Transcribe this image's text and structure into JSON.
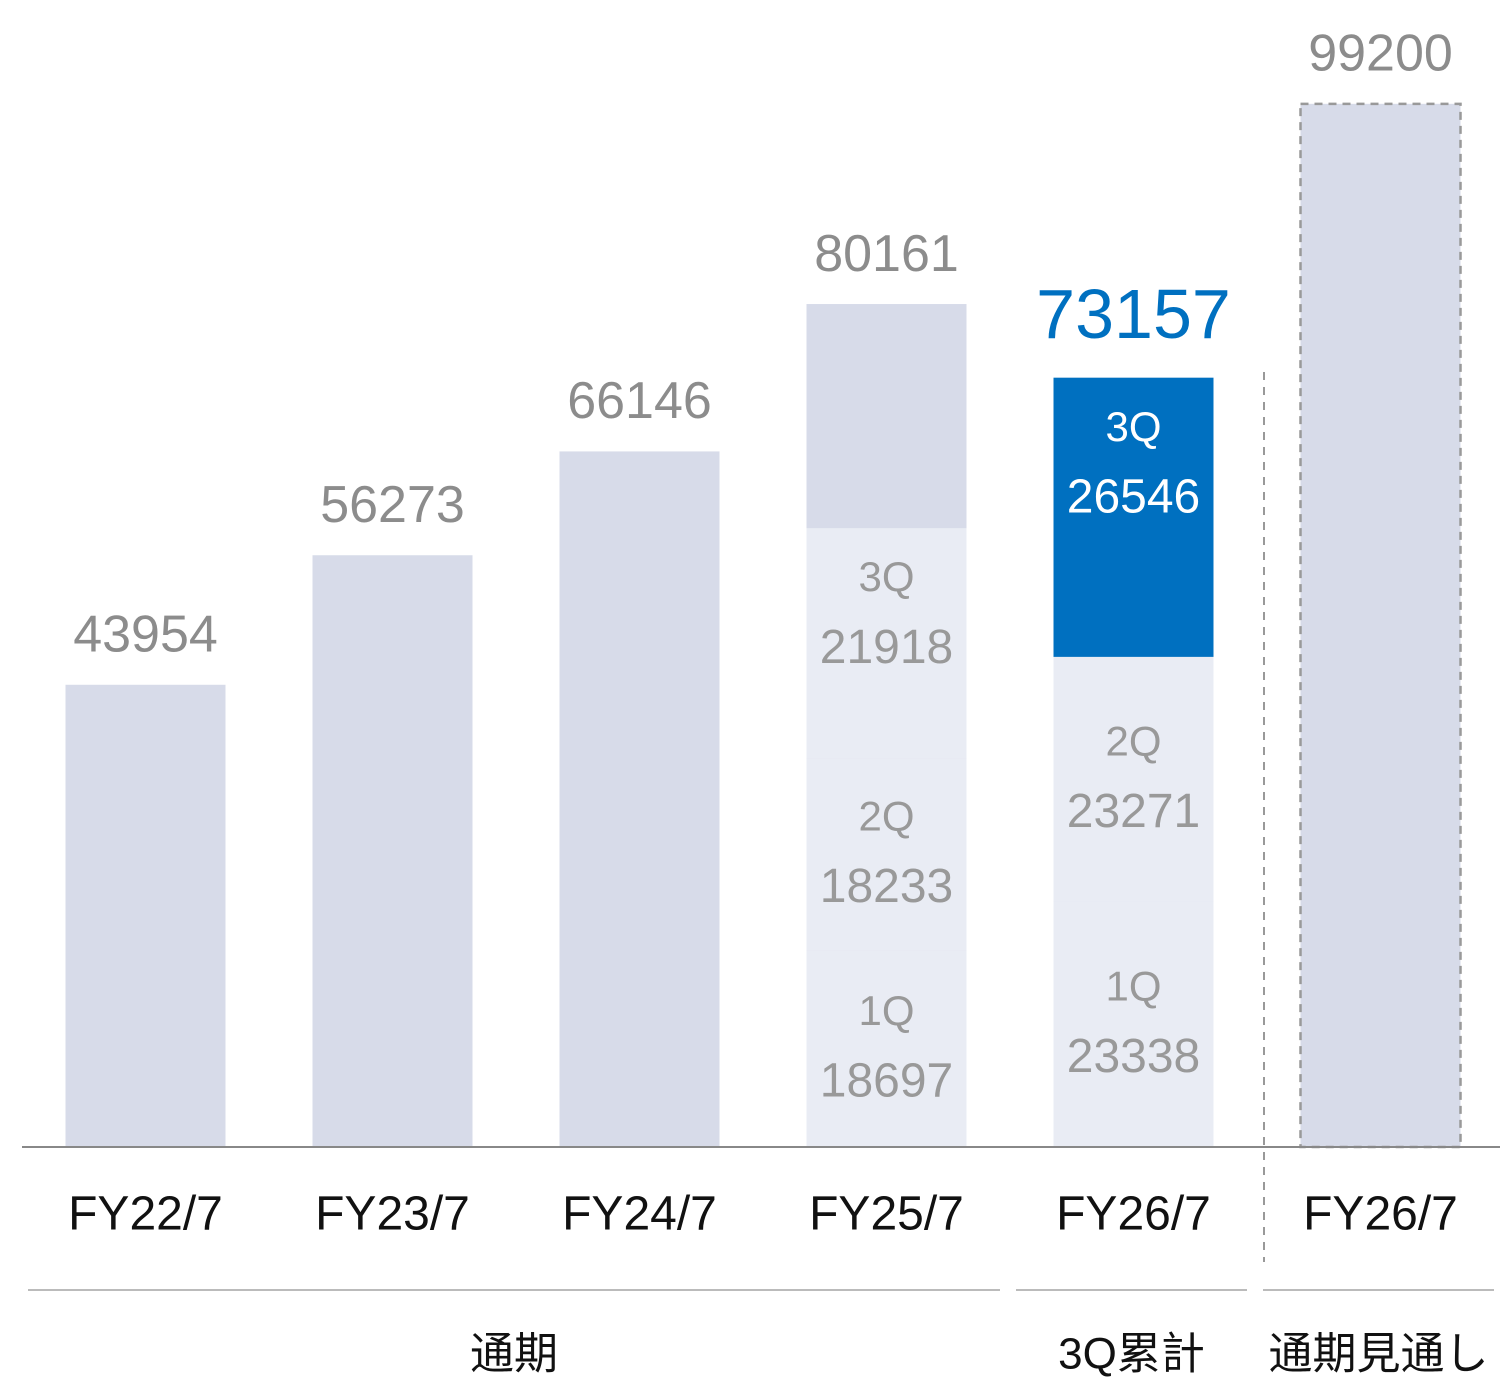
{
  "chart_data": {
    "type": "bar",
    "categories": [
      "FY22/7",
      "FY23/7",
      "FY24/7",
      "FY25/7",
      "FY26/7",
      "FY26/7"
    ],
    "values": [
      43954,
      56273,
      66146,
      80161,
      73157,
      99200
    ],
    "color": "#d7dbe9",
    "label_color": "#8c8c8c",
    "series": [
      {
        "name": "1Q",
        "color": "#e9ecf4",
        "values": [
          null,
          null,
          null,
          18697,
          23338,
          null
        ]
      },
      {
        "name": "2Q",
        "color": "#e9ecf4",
        "values": [
          null,
          null,
          null,
          18233,
          23271,
          null
        ]
      },
      {
        "name": "3Q",
        "color": "#e9ecf4",
        "values": [
          null,
          null,
          null,
          21918,
          26546,
          null
        ]
      }
    ],
    "highlight_color": "#0070c0",
    "highlight_category": 4,
    "forecast_category": 5,
    "group_labels": [
      "通期",
      "通期",
      "通期",
      "通期",
      "3Q累計",
      "通期見通し"
    ],
    "ylim": [
      0,
      100000
    ]
  }
}
